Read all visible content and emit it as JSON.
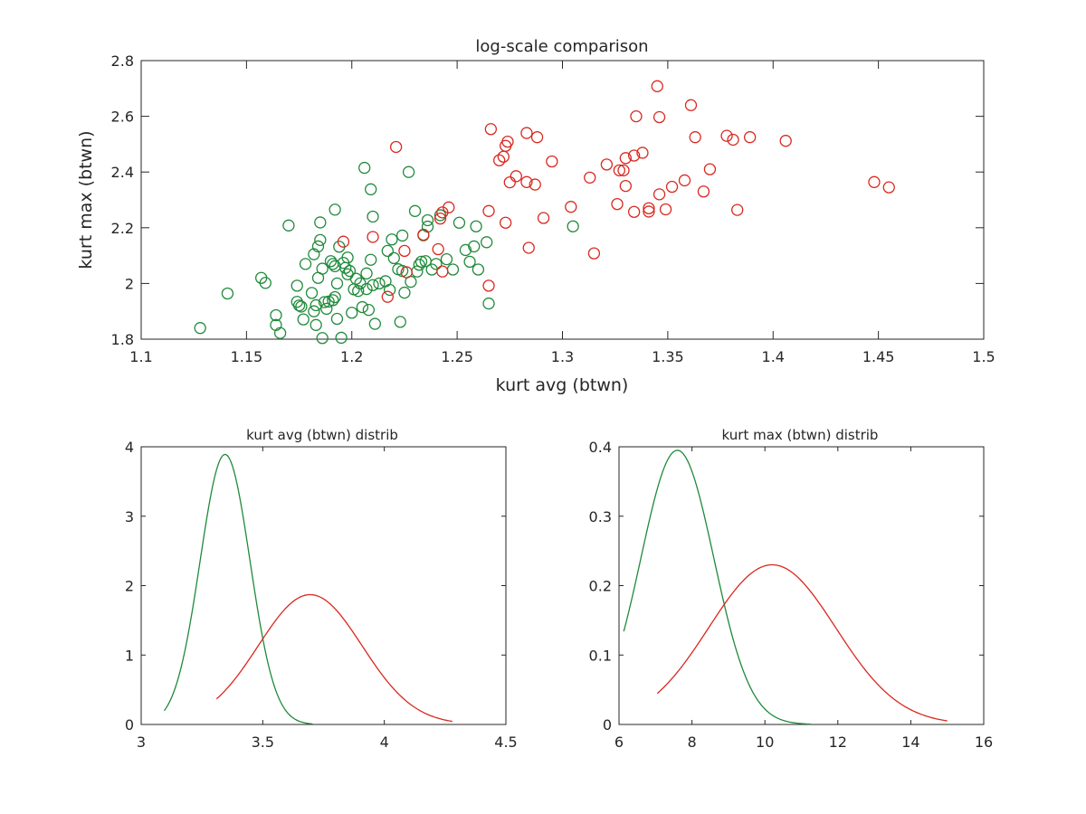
{
  "colors": {
    "green": "#1f8a3b",
    "red": "#d9281f",
    "axis": "#262626"
  },
  "chart_data": [
    {
      "type": "scatter",
      "title": "log-scale comparison",
      "xlabel": "kurt avg (btwn)",
      "ylabel": "kurt max (btwn)",
      "xlim": [
        1.1,
        1.5
      ],
      "ylim": [
        1.8,
        2.8
      ],
      "xticks": [
        1.1,
        1.15,
        1.2,
        1.25,
        1.3,
        1.35,
        1.4,
        1.45,
        1.5
      ],
      "xtick_labels": [
        "1.1",
        "1.15",
        "1.2",
        "1.25",
        "1.3",
        "1.35",
        "1.4",
        "1.45",
        "1.5"
      ],
      "yticks": [
        1.8,
        2.0,
        2.2,
        2.4,
        2.6,
        2.8
      ],
      "ytick_labels": [
        "1.8",
        "2",
        "2.2",
        "2.4",
        "2.6",
        "2.8"
      ],
      "marker": "open-circle",
      "series": [
        {
          "color": "#1f8a3b",
          "points": [
            [
              1.128,
              1.84
            ],
            [
              1.141,
              1.964
            ],
            [
              1.157,
              2.02
            ],
            [
              1.159,
              2.002
            ],
            [
              1.164,
              1.886
            ],
            [
              1.164,
              1.851
            ],
            [
              1.166,
              1.822
            ],
            [
              1.17,
              2.208
            ],
            [
              1.174,
              1.992
            ],
            [
              1.174,
              1.934
            ],
            [
              1.175,
              1.921
            ],
            [
              1.176,
              1.917
            ],
            [
              1.177,
              1.871
            ],
            [
              1.178,
              2.07
            ],
            [
              1.181,
              1.966
            ],
            [
              1.182,
              2.105
            ],
            [
              1.182,
              1.9
            ],
            [
              1.183,
              1.922
            ],
            [
              1.183,
              1.851
            ],
            [
              1.184,
              2.133
            ],
            [
              1.184,
              2.02
            ],
            [
              1.185,
              2.219
            ],
            [
              1.185,
              2.156
            ],
            [
              1.186,
              2.053
            ],
            [
              1.186,
              1.804
            ],
            [
              1.187,
              1.933
            ],
            [
              1.188,
              1.909
            ],
            [
              1.189,
              1.935
            ],
            [
              1.19,
              2.08
            ],
            [
              1.191,
              1.94
            ],
            [
              1.191,
              2.07
            ],
            [
              1.192,
              2.062
            ],
            [
              1.192,
              2.265
            ],
            [
              1.192,
              1.951
            ],
            [
              1.193,
              1.873
            ],
            [
              1.193,
              2.0
            ],
            [
              1.194,
              2.132
            ],
            [
              1.195,
              1.805
            ],
            [
              1.196,
              2.074
            ],
            [
              1.197,
              2.056
            ],
            [
              1.198,
              2.093
            ],
            [
              1.198,
              2.033
            ],
            [
              1.199,
              2.045
            ],
            [
              1.2,
              1.895
            ],
            [
              1.201,
              1.979
            ],
            [
              1.202,
              2.017
            ],
            [
              1.203,
              1.973
            ],
            [
              1.204,
              2.0
            ],
            [
              1.205,
              1.915
            ],
            [
              1.206,
              2.415
            ],
            [
              1.207,
              2.036
            ],
            [
              1.207,
              1.98
            ],
            [
              1.208,
              1.905
            ],
            [
              1.209,
              2.338
            ],
            [
              1.209,
              2.085
            ],
            [
              1.21,
              2.24
            ],
            [
              1.21,
              1.994
            ],
            [
              1.211,
              1.855
            ],
            [
              1.213,
              2.0
            ],
            [
              1.216,
              2.008
            ],
            [
              1.217,
              2.117
            ],
            [
              1.218,
              1.977
            ],
            [
              1.219,
              2.158
            ],
            [
              1.22,
              2.091
            ],
            [
              1.222,
              2.051
            ],
            [
              1.223,
              1.862
            ],
            [
              1.224,
              2.045
            ],
            [
              1.224,
              2.172
            ],
            [
              1.225,
              1.967
            ],
            [
              1.227,
              2.4
            ],
            [
              1.228,
              2.006
            ],
            [
              1.23,
              2.26
            ],
            [
              1.231,
              2.043
            ],
            [
              1.232,
              2.067
            ],
            [
              1.233,
              2.078
            ],
            [
              1.234,
              2.173
            ],
            [
              1.235,
              2.08
            ],
            [
              1.236,
              2.204
            ],
            [
              1.236,
              2.227
            ],
            [
              1.238,
              2.05
            ],
            [
              1.24,
              2.07
            ],
            [
              1.242,
              2.245
            ],
            [
              1.245,
              2.087
            ],
            [
              1.248,
              2.05
            ],
            [
              1.251,
              2.218
            ],
            [
              1.254,
              2.12
            ],
            [
              1.256,
              2.078
            ],
            [
              1.258,
              2.133
            ],
            [
              1.259,
              2.205
            ],
            [
              1.26,
              2.05
            ],
            [
              1.264,
              2.148
            ],
            [
              1.265,
              1.928
            ],
            [
              1.305,
              2.205
            ]
          ]
        },
        {
          "color": "#d9281f",
          "points": [
            [
              1.196,
              2.15
            ],
            [
              1.21,
              2.167
            ],
            [
              1.217,
              1.952
            ],
            [
              1.221,
              2.49
            ],
            [
              1.225,
              2.117
            ],
            [
              1.226,
              2.04
            ],
            [
              1.234,
              2.175
            ],
            [
              1.241,
              2.123
            ],
            [
              1.243,
              2.043
            ],
            [
              1.246,
              2.273
            ],
            [
              1.242,
              2.233
            ],
            [
              1.243,
              2.255
            ],
            [
              1.265,
              2.26
            ],
            [
              1.265,
              1.992
            ],
            [
              1.266,
              2.554
            ],
            [
              1.27,
              2.442
            ],
            [
              1.272,
              2.455
            ],
            [
              1.273,
              2.218
            ],
            [
              1.273,
              2.494
            ],
            [
              1.274,
              2.509
            ],
            [
              1.275,
              2.363
            ],
            [
              1.278,
              2.385
            ],
            [
              1.283,
              2.364
            ],
            [
              1.283,
              2.54
            ],
            [
              1.284,
              2.128
            ],
            [
              1.287,
              2.355
            ],
            [
              1.288,
              2.525
            ],
            [
              1.291,
              2.235
            ],
            [
              1.295,
              2.438
            ],
            [
              1.304,
              2.275
            ],
            [
              1.313,
              2.38
            ],
            [
              1.315,
              2.108
            ],
            [
              1.321,
              2.427
            ],
            [
              1.326,
              2.285
            ],
            [
              1.327,
              2.406
            ],
            [
              1.329,
              2.406
            ],
            [
              1.33,
              2.45
            ],
            [
              1.33,
              2.35
            ],
            [
              1.334,
              2.459
            ],
            [
              1.334,
              2.257
            ],
            [
              1.335,
              2.6
            ],
            [
              1.338,
              2.469
            ],
            [
              1.341,
              2.258
            ],
            [
              1.341,
              2.27
            ],
            [
              1.345,
              2.708
            ],
            [
              1.346,
              2.32
            ],
            [
              1.346,
              2.597
            ],
            [
              1.349,
              2.266
            ],
            [
              1.352,
              2.347
            ],
            [
              1.358,
              2.37
            ],
            [
              1.361,
              2.64
            ],
            [
              1.363,
              2.525
            ],
            [
              1.367,
              2.33
            ],
            [
              1.37,
              2.41
            ],
            [
              1.378,
              2.53
            ],
            [
              1.381,
              2.516
            ],
            [
              1.383,
              2.264
            ],
            [
              1.389,
              2.525
            ],
            [
              1.406,
              2.512
            ],
            [
              1.448,
              2.364
            ],
            [
              1.455,
              2.345
            ]
          ]
        }
      ]
    },
    {
      "type": "line",
      "title": "kurt avg (btwn) distrib",
      "xlim": [
        3,
        4.5
      ],
      "ylim": [
        0,
        4
      ],
      "xticks": [
        3,
        3.5,
        4,
        4.5
      ],
      "xtick_labels": [
        "3",
        "3.5",
        "4",
        "4.5"
      ],
      "yticks": [
        0,
        1,
        2,
        3,
        4
      ],
      "ytick_labels": [
        "0",
        "1",
        "2",
        "3",
        "4"
      ],
      "series": [
        {
          "color": "#1f8a3b",
          "curve": "normal-pdf",
          "mean": 3.345,
          "sd": 0.1025,
          "amplitude": 3.89,
          "x_range": [
            3.095,
            3.705
          ]
        },
        {
          "color": "#d9281f",
          "curve": "normal-pdf",
          "mean": 3.695,
          "sd": 0.2135,
          "amplitude": 1.87,
          "x_range": [
            3.31,
            4.28
          ]
        }
      ]
    },
    {
      "type": "line",
      "title": "kurt max (btwn) distrib",
      "xlim": [
        6,
        16
      ],
      "ylim": [
        0,
        0.4
      ],
      "xticks": [
        6,
        8,
        10,
        12,
        14,
        16
      ],
      "xtick_labels": [
        "6",
        "8",
        "10",
        "12",
        "14",
        "16"
      ],
      "yticks": [
        0,
        0.1,
        0.2,
        0.3,
        0.4
      ],
      "ytick_labels": [
        "0",
        "0.1",
        "0.2",
        "0.3",
        "0.4"
      ],
      "series": [
        {
          "color": "#1f8a3b",
          "curve": "normal-pdf",
          "mean": 7.6,
          "sd": 1.0,
          "amplitude": 0.395,
          "x_range": [
            6.13,
            11.25
          ]
        },
        {
          "color": "#d9281f",
          "curve": "normal-pdf",
          "mean": 10.2,
          "sd": 1.74,
          "amplitude": 0.23,
          "x_range": [
            7.05,
            15.0
          ]
        }
      ]
    }
  ]
}
